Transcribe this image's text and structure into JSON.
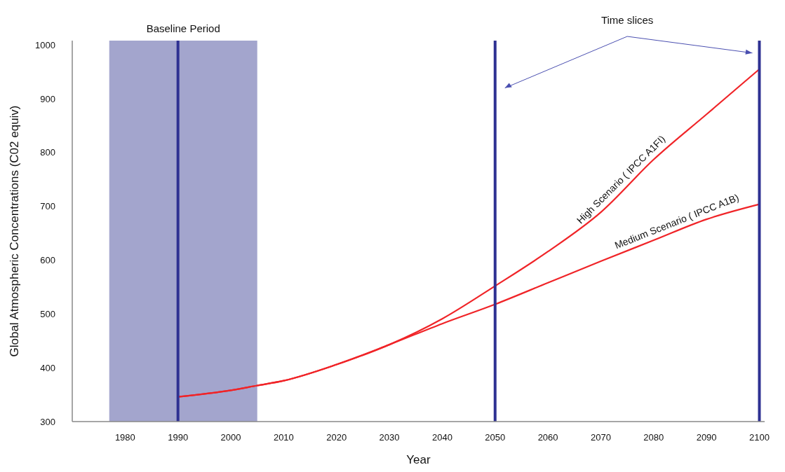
{
  "chart_data": {
    "type": "line",
    "xlabel": "Year",
    "ylabel": "Global Atmospheric Concentrations (C02 equiv)",
    "x": [
      1990,
      2000,
      2005,
      2010,
      2020,
      2030,
      2040,
      2050,
      2060,
      2070,
      2080,
      2090,
      2100
    ],
    "series": [
      {
        "name": "High Scenario ( IPCC A1FI)",
        "color": "#f02428",
        "values": [
          346,
          358,
          367,
          376,
          406,
          443,
          491,
          552,
          616,
          689,
          787,
          871,
          955
        ]
      },
      {
        "name": "Medium Scenario ( IPCC A1B)",
        "color": "#f02428",
        "values": [
          346,
          358,
          367,
          376,
          406,
          443,
          482,
          518,
          558,
          598,
          637,
          676,
          704
        ]
      }
    ],
    "xlim": [
      1970,
      2101
    ],
    "xticks": [
      1980,
      1990,
      2000,
      2010,
      2020,
      2030,
      2040,
      2050,
      2060,
      2070,
      2080,
      2090,
      2100
    ],
    "ylim": [
      300,
      1008
    ],
    "yticks": [
      300,
      400,
      500,
      600,
      700,
      800,
      900,
      1000
    ],
    "grid": false,
    "legend": false,
    "marker": "none",
    "line_style": "solid",
    "bands": [
      {
        "axis": "x",
        "from": 1977,
        "to": 2005,
        "label": "Baseline Period",
        "color": "#a3a5cd"
      }
    ],
    "ref_lines": [
      {
        "axis": "x",
        "value": 1990,
        "label": null,
        "color": "#2e3192"
      },
      {
        "axis": "x",
        "value": 2050,
        "label": null,
        "color": "#2e3192"
      },
      {
        "axis": "x",
        "value": 2100,
        "label": null,
        "color": "#2e3192"
      }
    ],
    "annotations": [
      "Time slices"
    ]
  }
}
